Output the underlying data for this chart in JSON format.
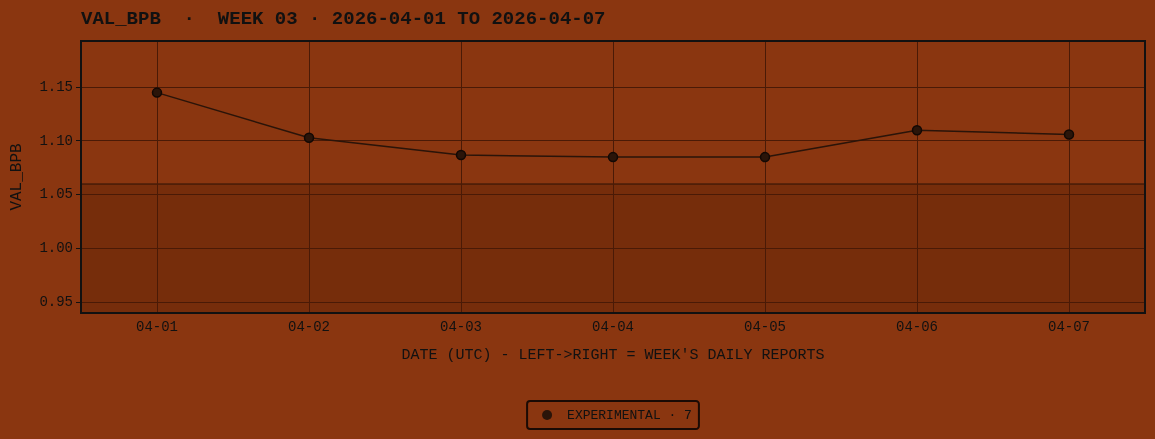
{
  "chart_data": {
    "type": "line",
    "title": "VAL_BPB  ·  WEEK 03 · 2026-04-01 TO 2026-04-07",
    "xlabel": "DATE (UTC) - LEFT->RIGHT = WEEK'S DAILY REPORTS",
    "ylabel": "VAL_BPB",
    "categories": [
      "04-01",
      "04-02",
      "04-03",
      "04-04",
      "04-05",
      "04-06",
      "04-07"
    ],
    "series": [
      {
        "name": "EXPERIMENTAL · 7",
        "color": "#2a1409",
        "values": [
          1.145,
          1.103,
          1.087,
          1.085,
          1.085,
          1.11,
          1.106
        ]
      }
    ],
    "ylim": [
      0.94,
      1.193
    ],
    "yticks": [
      0.95,
      {
        "value": 1,
        "label": "1.00"
      },
      1.05,
      {
        "value": 1.1,
        "label": "1.10"
      },
      1.15
    ],
    "bands": [
      {
        "axis": "y",
        "from": 0.94,
        "to": 1.06,
        "color": "#762d0b"
      }
    ],
    "ref_lines": [
      {
        "axis": "y",
        "value": 1.06,
        "color": "#2a1005",
        "line_style": "solid"
      }
    ],
    "grid": true,
    "legend": "bottom",
    "marker": "circle",
    "line_style": "solid"
  }
}
